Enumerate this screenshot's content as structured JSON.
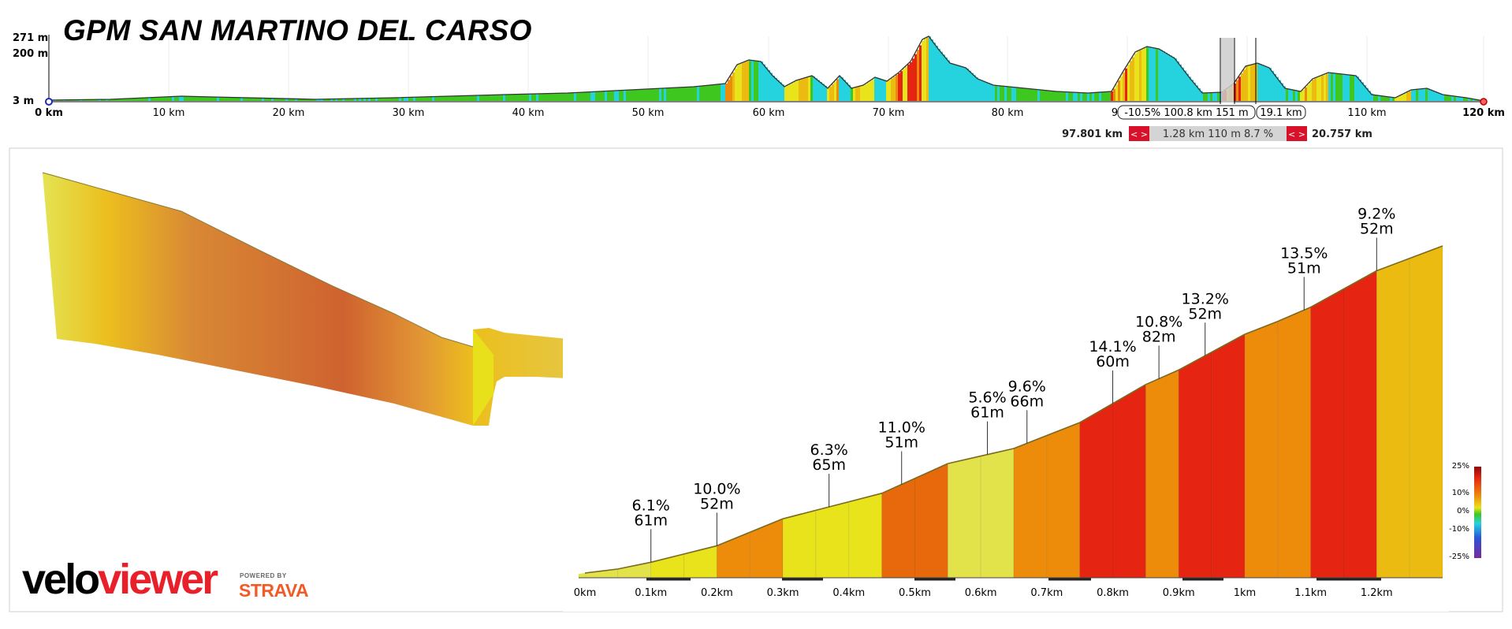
{
  "title": "GPM SAN MARTINO DEL CARSO",
  "colors": {
    "yellow": "#e8e31a",
    "yellow_light": "#e2e24a",
    "yellow_orange": "#ebbb12",
    "orange": "#ed8c0b",
    "orange_dark": "#e8690b",
    "red": "#e52512",
    "red_dark": "#c8170c",
    "green": "#3ec71e",
    "cyan": "#25d3df"
  },
  "overview": {
    "y_tick_labels": [
      "271 m",
      "200 m",
      "3 m"
    ],
    "x_tick_labels": [
      "0 km",
      "10 km",
      "20 km",
      "30 km",
      "40 km",
      "50 km",
      "60 km",
      "70 km",
      "80 km",
      "9",
      "110 km",
      "120 km"
    ],
    "selection_boxes": [
      "-10.5% 100.8 km 151 m",
      "19.1 km"
    ],
    "selection_bar": {
      "left_value": "97.801 km",
      "center_value": "1.28 km 110 m 8.7 %",
      "right_value": "20.757 km",
      "arrows": "< >"
    }
  },
  "chart_data": {
    "type": "area",
    "title": "GPM SAN MARTINO DEL CARSO",
    "xlabel": "",
    "ylabel": "",
    "x_unit": "km",
    "xlim": [
      0,
      1.3
    ],
    "x_tick_labels": [
      "0km",
      "0.1km",
      "0.2km",
      "0.3km",
      "0.4km",
      "0.5km",
      "0.6km",
      "0.7km",
      "0.8km",
      "0.9km",
      "1km",
      "1.1km",
      "1.2km"
    ],
    "profile_x_km": [
      0,
      0.05,
      0.1,
      0.15,
      0.2,
      0.25,
      0.3,
      0.35,
      0.4,
      0.45,
      0.5,
      0.55,
      0.6,
      0.65,
      0.7,
      0.75,
      0.8,
      0.85,
      0.9,
      0.95,
      1.0,
      1.05,
      1.1,
      1.15,
      1.2,
      1.25,
      1.3
    ],
    "segment_gradients_pct": [
      3.0,
      5.0,
      6.1,
      6.1,
      10.0,
      10.0,
      6.3,
      6.3,
      6.3,
      11.0,
      11.0,
      5.6,
      5.6,
      9.6,
      9.6,
      14.1,
      14.1,
      10.8,
      13.2,
      13.2,
      9.6,
      10.5,
      13.5,
      13.5,
      9.2,
      9.2
    ],
    "annotations": [
      {
        "x_km": 0.1,
        "gradient": "6.1%",
        "elevation": "61m"
      },
      {
        "x_km": 0.2,
        "gradient": "10.0%",
        "elevation": "52m"
      },
      {
        "x_km": 0.37,
        "gradient": "6.3%",
        "elevation": "65m"
      },
      {
        "x_km": 0.48,
        "gradient": "11.0%",
        "elevation": "51m"
      },
      {
        "x_km": 0.61,
        "gradient": "5.6%",
        "elevation": "61m"
      },
      {
        "x_km": 0.67,
        "gradient": "9.6%",
        "elevation": "66m"
      },
      {
        "x_km": 0.8,
        "gradient": "14.1%",
        "elevation": "60m"
      },
      {
        "x_km": 0.87,
        "gradient": "10.8%",
        "elevation": "82m"
      },
      {
        "x_km": 0.94,
        "gradient": "13.2%",
        "elevation": "52m"
      },
      {
        "x_km": 1.09,
        "gradient": "13.5%",
        "elevation": "51m"
      },
      {
        "x_km": 1.2,
        "gradient": "9.2%",
        "elevation": "52m"
      }
    ],
    "legend": {
      "placement": "right",
      "labels": [
        "25%",
        "10%",
        "0%",
        "-10%",
        "-25%"
      ]
    }
  },
  "branding": {
    "logo_velo": "velo",
    "logo_viewer": "viewer",
    "powered_by": "POWERED BY",
    "strava": "STRAVA"
  }
}
